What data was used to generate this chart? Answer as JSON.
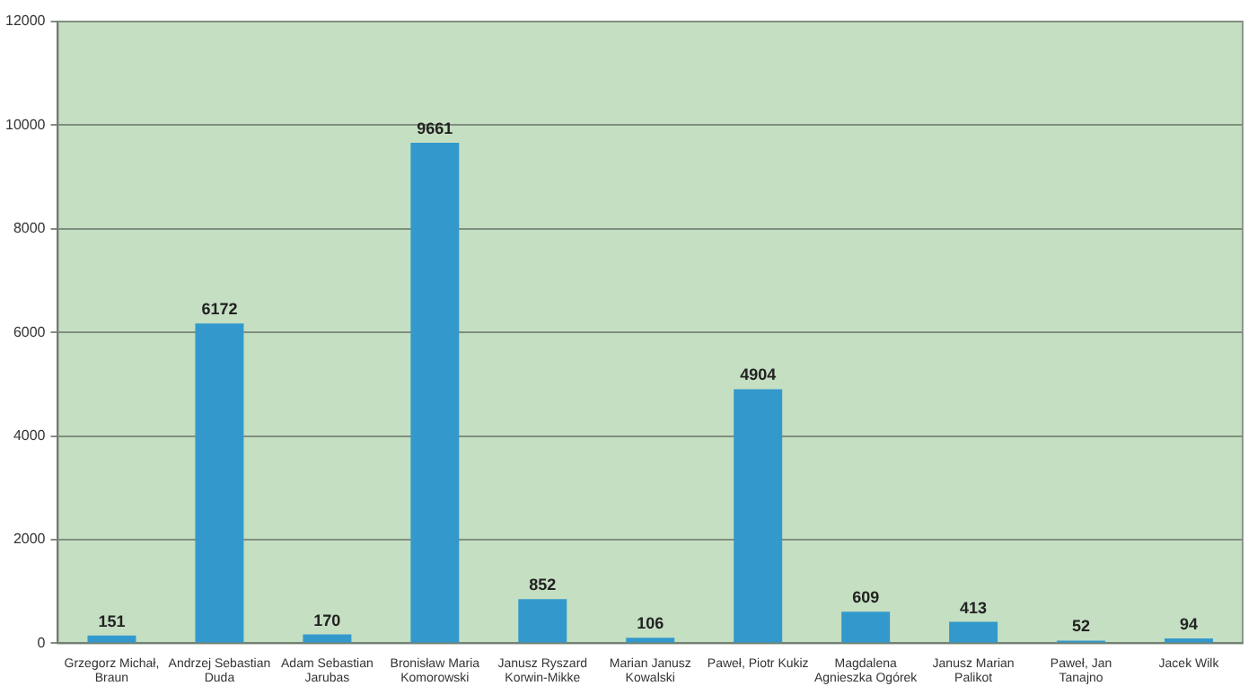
{
  "chart_data": {
    "type": "bar",
    "categories": [
      "Grzegorz Michał,\nBraun",
      "Andrzej Sebastian\nDuda",
      "Adam Sebastian\nJarubas",
      "Bronisław Maria\nKomorowski",
      "Janusz Ryszard\nKorwin-Mikke",
      "Marian Janusz\nKowalski",
      "Paweł, Piotr Kukiz",
      "Magdalena\nAgnieszka Ogórek",
      "Janusz Marian\nPalikot",
      "Paweł, Jan\nTanajno",
      "Jacek Wilk"
    ],
    "values": [
      151,
      6172,
      170,
      9661,
      852,
      106,
      4904,
      609,
      413,
      52,
      94
    ],
    "color": "#3399cc",
    "ylim": [
      0,
      12000
    ],
    "yticks": [
      0,
      2000,
      4000,
      6000,
      8000,
      10000,
      12000
    ],
    "grid": "y",
    "legend": false,
    "data_labels": true
  }
}
